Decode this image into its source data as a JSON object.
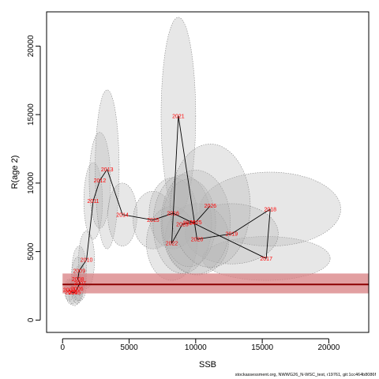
{
  "chart_data": {
    "type": "scatter",
    "title": "",
    "xlabel": "SSB",
    "ylabel": "R(age 2)",
    "xlim": [
      -1200,
      23000
    ],
    "ylim": [
      -900,
      22500
    ],
    "xticks": [
      0,
      5000,
      10000,
      15000,
      20000
    ],
    "yticks": [
      0,
      5000,
      10000,
      15000,
      20000
    ],
    "grid": false,
    "series": [
      {
        "points": [
          {
            "year": "2003",
            "x": 500,
            "y": 2200
          },
          {
            "year": "2004",
            "x": 650,
            "y": 2050
          },
          {
            "year": "2005",
            "x": 900,
            "y": 2000
          },
          {
            "year": "2006",
            "x": 1100,
            "y": 2300
          },
          {
            "year": "2007",
            "x": 1300,
            "y": 2700
          },
          {
            "year": "2008",
            "x": 1150,
            "y": 3000
          },
          {
            "year": "2009",
            "x": 1250,
            "y": 3600
          },
          {
            "year": "2010",
            "x": 1800,
            "y": 4400
          },
          {
            "year": "2011",
            "x": 2300,
            "y": 8700
          },
          {
            "year": "2012",
            "x": 2800,
            "y": 10200
          },
          {
            "year": "2013",
            "x": 3350,
            "y": 11000
          },
          {
            "year": "2014",
            "x": 4500,
            "y": 7700
          },
          {
            "year": "2015",
            "x": 6800,
            "y": 7300
          },
          {
            "year": "2016",
            "x": 8300,
            "y": 7800
          },
          {
            "year": "2017",
            "x": 15300,
            "y": 4500
          },
          {
            "year": "2018",
            "x": 15600,
            "y": 8100
          },
          {
            "year": "2019",
            "x": 12700,
            "y": 6300
          },
          {
            "year": "2020",
            "x": 10100,
            "y": 5900
          },
          {
            "year": "2021",
            "x": 8700,
            "y": 14900
          },
          {
            "year": "2022",
            "x": 8200,
            "y": 5600
          },
          {
            "year": "2023",
            "x": 9000,
            "y": 7000
          },
          {
            "year": "2024",
            "x": 9500,
            "y": 7100
          },
          {
            "year": "2025",
            "x": 10000,
            "y": 7150
          },
          {
            "year": "2026",
            "x": 11100,
            "y": 8350
          }
        ]
      }
    ],
    "uncertainty_ellipses": [
      {
        "x": 500,
        "y": 2200,
        "rx": 350,
        "ry": 800
      },
      {
        "x": 650,
        "y": 2050,
        "rx": 400,
        "ry": 900
      },
      {
        "x": 900,
        "y": 2000,
        "rx": 450,
        "ry": 950
      },
      {
        "x": 1100,
        "y": 2300,
        "rx": 450,
        "ry": 1100
      },
      {
        "x": 1300,
        "y": 2700,
        "rx": 500,
        "ry": 1300
      },
      {
        "x": 1150,
        "y": 3000,
        "rx": 500,
        "ry": 1600
      },
      {
        "x": 1250,
        "y": 3600,
        "rx": 550,
        "ry": 1800
      },
      {
        "x": 1800,
        "y": 4400,
        "rx": 600,
        "ry": 2100
      },
      {
        "x": 2300,
        "y": 8700,
        "rx": 700,
        "ry": 2800
      },
      {
        "x": 2800,
        "y": 10200,
        "rx": 800,
        "ry": 3500
      },
      {
        "x": 3350,
        "y": 11000,
        "rx": 900,
        "ry": 5800
      },
      {
        "x": 4500,
        "y": 7700,
        "rx": 1100,
        "ry": 2300
      },
      {
        "x": 6800,
        "y": 7300,
        "rx": 1500,
        "ry": 2100
      },
      {
        "x": 8300,
        "y": 7800,
        "rx": 1800,
        "ry": 2600
      },
      {
        "x": 15300,
        "y": 4500,
        "rx": 4800,
        "ry": 1600
      },
      {
        "x": 15600,
        "y": 8100,
        "rx": 5300,
        "ry": 2700
      },
      {
        "x": 12700,
        "y": 6300,
        "rx": 3500,
        "ry": 2200
      },
      {
        "x": 10100,
        "y": 5900,
        "rx": 2400,
        "ry": 2600
      },
      {
        "x": 8700,
        "y": 14900,
        "rx": 1300,
        "ry": 7200
      },
      {
        "x": 8200,
        "y": 5600,
        "rx": 1900,
        "ry": 2700
      },
      {
        "x": 9000,
        "y": 7000,
        "rx": 2200,
        "ry": 3600
      },
      {
        "x": 9500,
        "y": 7100,
        "rx": 2000,
        "ry": 3200
      },
      {
        "x": 10000,
        "y": 7150,
        "rx": 2600,
        "ry": 3800
      },
      {
        "x": 11100,
        "y": 8350,
        "rx": 3000,
        "ry": 4500
      }
    ],
    "reference_line": {
      "y": 2600,
      "band": [
        1950,
        3400
      ],
      "x_from": 0,
      "color": "#8b0000",
      "band_color": "#d87f82"
    },
    "colors": {
      "ellipse_fill": "#b3b3b3",
      "ellipse_stroke": "#888888",
      "path": "#000000",
      "year_text": "#ff0000"
    }
  },
  "footer_text": "stockassessment.org, NWWG26_N-WSC_test, r19761, git:1cc464b8086f"
}
